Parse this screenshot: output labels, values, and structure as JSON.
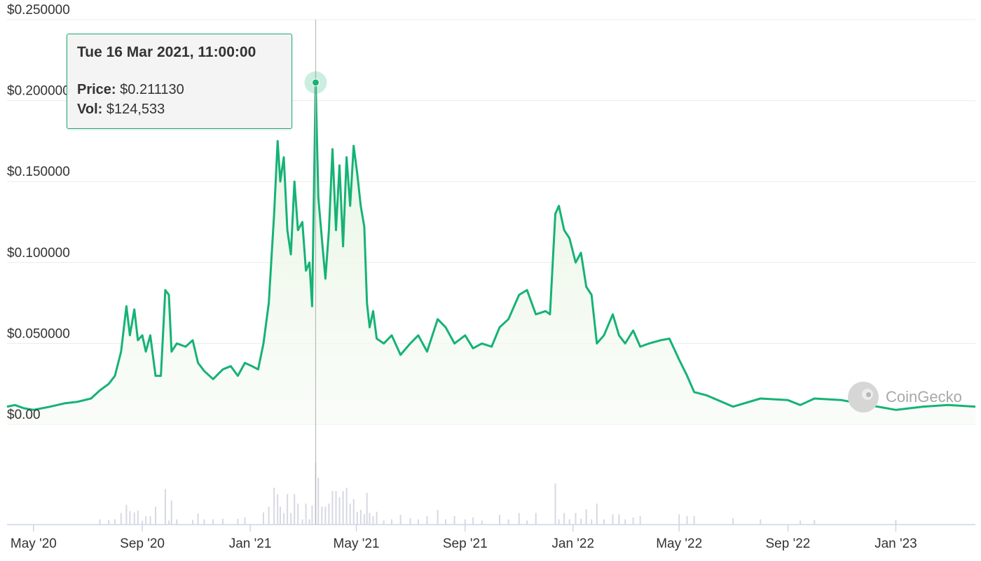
{
  "chart_data": {
    "type": "area",
    "y_ticks": [
      "$0.00",
      "$0.050000",
      "$0.100000",
      "$0.150000",
      "$0.200000",
      "$0.250000"
    ],
    "y_tick_values": [
      0,
      0.05,
      0.1,
      0.15,
      0.2,
      0.25
    ],
    "ylim": [
      0,
      0.25
    ],
    "x_ticks": [
      "May '20",
      "Sep '20",
      "Jan '21",
      "May '21",
      "Sep '21",
      "Jan '22",
      "May '22",
      "Sep '22",
      "Jan '23"
    ],
    "x_tick_dates": [
      "2020-05-01",
      "2020-09-01",
      "2021-01-01",
      "2021-05-01",
      "2021-09-01",
      "2022-01-01",
      "2022-05-01",
      "2022-09-01",
      "2023-01-01"
    ],
    "xlim": [
      "2020-04-01",
      "2023-04-01"
    ],
    "grid": "horizontal",
    "colors": {
      "line": "#16b276",
      "fill": "#e8f6e5",
      "volume": "#d7d8e2",
      "grid": "#ececec",
      "crosshair": "#bbbbbb"
    },
    "price_series": [
      [
        "2020-04-01",
        0.011
      ],
      [
        "2020-04-10",
        0.012
      ],
      [
        "2020-04-20",
        0.01
      ],
      [
        "2020-05-01",
        0.009
      ],
      [
        "2020-05-20",
        0.011
      ],
      [
        "2020-06-05",
        0.013
      ],
      [
        "2020-06-20",
        0.014
      ],
      [
        "2020-07-05",
        0.016
      ],
      [
        "2020-07-15",
        0.021
      ],
      [
        "2020-07-25",
        0.025
      ],
      [
        "2020-08-01",
        0.03
      ],
      [
        "2020-08-08",
        0.045
      ],
      [
        "2020-08-14",
        0.073
      ],
      [
        "2020-08-18",
        0.055
      ],
      [
        "2020-08-23",
        0.071
      ],
      [
        "2020-08-27",
        0.052
      ],
      [
        "2020-09-01",
        0.055
      ],
      [
        "2020-09-05",
        0.045
      ],
      [
        "2020-09-10",
        0.055
      ],
      [
        "2020-09-16",
        0.03
      ],
      [
        "2020-09-22",
        0.03
      ],
      [
        "2020-09-27",
        0.083
      ],
      [
        "2020-10-01",
        0.08
      ],
      [
        "2020-10-04",
        0.045
      ],
      [
        "2020-10-10",
        0.05
      ],
      [
        "2020-10-20",
        0.048
      ],
      [
        "2020-10-28",
        0.052
      ],
      [
        "2020-11-03",
        0.038
      ],
      [
        "2020-11-10",
        0.033
      ],
      [
        "2020-11-20",
        0.028
      ],
      [
        "2020-12-01",
        0.034
      ],
      [
        "2020-12-10",
        0.036
      ],
      [
        "2020-12-18",
        0.03
      ],
      [
        "2020-12-26",
        0.038
      ],
      [
        "2021-01-03",
        0.036
      ],
      [
        "2021-01-10",
        0.034
      ],
      [
        "2021-01-16",
        0.05
      ],
      [
        "2021-01-22",
        0.075
      ],
      [
        "2021-01-28",
        0.13
      ],
      [
        "2021-02-01",
        0.175
      ],
      [
        "2021-02-04",
        0.15
      ],
      [
        "2021-02-08",
        0.165
      ],
      [
        "2021-02-12",
        0.12
      ],
      [
        "2021-02-16",
        0.105
      ],
      [
        "2021-02-20",
        0.15
      ],
      [
        "2021-02-24",
        0.12
      ],
      [
        "2021-03-01",
        0.125
      ],
      [
        "2021-03-05",
        0.095
      ],
      [
        "2021-03-09",
        0.1
      ],
      [
        "2021-03-12",
        0.073
      ],
      [
        "2021-03-16",
        0.21113
      ],
      [
        "2021-03-19",
        0.14
      ],
      [
        "2021-03-23",
        0.115
      ],
      [
        "2021-03-27",
        0.09
      ],
      [
        "2021-03-31",
        0.12
      ],
      [
        "2021-04-04",
        0.17
      ],
      [
        "2021-04-08",
        0.12
      ],
      [
        "2021-04-12",
        0.16
      ],
      [
        "2021-04-16",
        0.11
      ],
      [
        "2021-04-20",
        0.165
      ],
      [
        "2021-04-24",
        0.135
      ],
      [
        "2021-04-28",
        0.172
      ],
      [
        "2021-05-02",
        0.155
      ],
      [
        "2021-05-06",
        0.135
      ],
      [
        "2021-05-10",
        0.122
      ],
      [
        "2021-05-13",
        0.075
      ],
      [
        "2021-05-16",
        0.06
      ],
      [
        "2021-05-20",
        0.07
      ],
      [
        "2021-05-24",
        0.053
      ],
      [
        "2021-06-01",
        0.05
      ],
      [
        "2021-06-10",
        0.055
      ],
      [
        "2021-06-20",
        0.043
      ],
      [
        "2021-07-01",
        0.05
      ],
      [
        "2021-07-10",
        0.055
      ],
      [
        "2021-07-20",
        0.045
      ],
      [
        "2021-08-01",
        0.065
      ],
      [
        "2021-08-10",
        0.06
      ],
      [
        "2021-08-20",
        0.05
      ],
      [
        "2021-09-01",
        0.055
      ],
      [
        "2021-09-10",
        0.047
      ],
      [
        "2021-09-20",
        0.05
      ],
      [
        "2021-10-01",
        0.048
      ],
      [
        "2021-10-10",
        0.06
      ],
      [
        "2021-10-20",
        0.065
      ],
      [
        "2021-11-01",
        0.08
      ],
      [
        "2021-11-10",
        0.083
      ],
      [
        "2021-11-20",
        0.068
      ],
      [
        "2021-12-01",
        0.07
      ],
      [
        "2021-12-06",
        0.068
      ],
      [
        "2021-12-12",
        0.13
      ],
      [
        "2021-12-16",
        0.135
      ],
      [
        "2021-12-22",
        0.12
      ],
      [
        "2021-12-28",
        0.115
      ],
      [
        "2022-01-04",
        0.1
      ],
      [
        "2022-01-10",
        0.106
      ],
      [
        "2022-01-16",
        0.085
      ],
      [
        "2022-01-22",
        0.08
      ],
      [
        "2022-01-28",
        0.05
      ],
      [
        "2022-02-05",
        0.055
      ],
      [
        "2022-02-15",
        0.068
      ],
      [
        "2022-02-22",
        0.055
      ],
      [
        "2022-03-01",
        0.05
      ],
      [
        "2022-03-10",
        0.058
      ],
      [
        "2022-03-18",
        0.048
      ],
      [
        "2022-03-28",
        0.05
      ],
      [
        "2022-04-10",
        0.052
      ],
      [
        "2022-04-20",
        0.053
      ],
      [
        "2022-05-01",
        0.04
      ],
      [
        "2022-05-10",
        0.03
      ],
      [
        "2022-05-18",
        0.02
      ],
      [
        "2022-06-01",
        0.018
      ],
      [
        "2022-07-01",
        0.011
      ],
      [
        "2022-08-01",
        0.016
      ],
      [
        "2022-09-01",
        0.015
      ],
      [
        "2022-09-15",
        0.012
      ],
      [
        "2022-10-01",
        0.016
      ],
      [
        "2022-11-01",
        0.015
      ],
      [
        "2022-11-20",
        0.013
      ],
      [
        "2023-01-01",
        0.009
      ],
      [
        "2023-02-01",
        0.011
      ],
      [
        "2023-03-01",
        0.012
      ],
      [
        "2023-04-01",
        0.011
      ]
    ],
    "tooltip": {
      "date": "Tue 16 Mar 2021, 11:00:00",
      "price_label": "Price:",
      "price_value": "$0.211130",
      "vol_label": "Vol:",
      "vol_value": "$124,533",
      "point_date": "2021-03-16",
      "point_price": 0.21113
    }
  },
  "watermark": {
    "text": "CoinGecko"
  }
}
